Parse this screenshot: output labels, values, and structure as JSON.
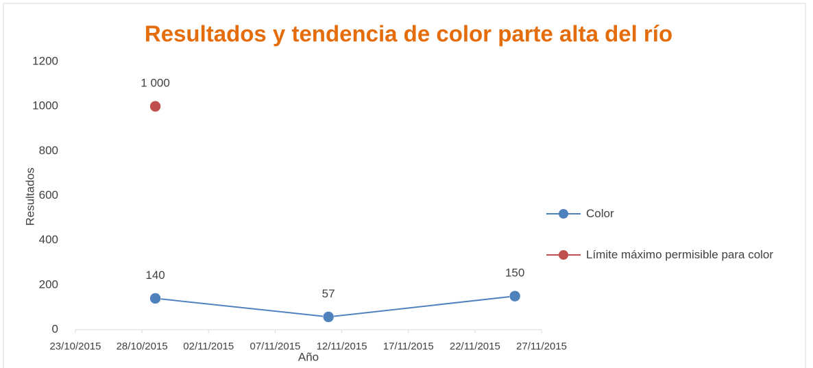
{
  "chart_data": {
    "type": "line",
    "title": "Resultados y tendencia de color parte alta del río",
    "y_label": "Resultados",
    "x_label": "Año",
    "series": [
      {
        "name": "Color",
        "color": "#4f81bd",
        "x": [
          "29/10/2015",
          "11/11/2015",
          "25/11/2015"
        ],
        "values": [
          140,
          57,
          150
        ]
      },
      {
        "name": "Límite máximo permisible para color",
        "color": "#c0504d",
        "x": [
          "29/10/2015"
        ],
        "values": [
          1000
        ],
        "value_labels": [
          "1 000"
        ]
      }
    ],
    "xlim": [
      "23/10/2015",
      "27/11/2015"
    ],
    "xticks": [
      "23/10/2015",
      "28/10/2015",
      "02/11/2015",
      "07/11/2015",
      "12/11/2015",
      "17/11/2015",
      "22/11/2015",
      "27/11/2015"
    ],
    "ylim": [
      0,
      1200
    ],
    "yticks": [
      0,
      200,
      400,
      600,
      800,
      1000,
      1200
    ],
    "grid": false,
    "legend": "right"
  }
}
